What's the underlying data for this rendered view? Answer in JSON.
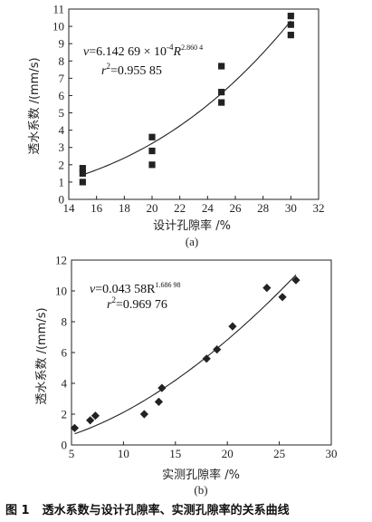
{
  "caption": {
    "label": "图 1",
    "text": "透水系数与设计孔隙率、实测孔隙率的关系曲线"
  },
  "chart_data": [
    {
      "type": "scatter",
      "panel_label": "(a)",
      "xlabel": "设计孔隙率 /%",
      "ylabel": "透水系数 /(mm/s)",
      "xlim": [
        14,
        32
      ],
      "ylim": [
        0,
        11
      ],
      "xticks": [
        14,
        16,
        18,
        20,
        22,
        24,
        26,
        28,
        30,
        32
      ],
      "yticks": [
        0,
        1,
        2,
        3,
        4,
        5,
        6,
        7,
        8,
        9,
        10,
        11
      ],
      "marker": "square",
      "points": [
        {
          "x": 15,
          "y": 1.0
        },
        {
          "x": 15,
          "y": 1.5
        },
        {
          "x": 15,
          "y": 1.8
        },
        {
          "x": 20,
          "y": 2.0
        },
        {
          "x": 20,
          "y": 2.8
        },
        {
          "x": 20,
          "y": 3.6
        },
        {
          "x": 25,
          "y": 5.6
        },
        {
          "x": 25,
          "y": 6.2
        },
        {
          "x": 25,
          "y": 7.7
        },
        {
          "x": 30,
          "y": 9.5
        },
        {
          "x": 30,
          "y": 10.1
        },
        {
          "x": 30,
          "y": 10.6
        }
      ],
      "fit": {
        "coef": 0.000614269,
        "exp": 2.8604,
        "x_from": 15,
        "x_to": 30
      },
      "equation": {
        "v": "v",
        "eq_a": "=6.142 69 × 10",
        "pow_a": "-4",
        "r_sym": "R",
        "pow_b": "2.860 4",
        "r2": "r",
        "r2_pow": "2",
        "r2_val": "=0.955 85"
      }
    },
    {
      "type": "scatter",
      "panel_label": "(b)",
      "xlabel": "实测孔隙率 /%",
      "ylabel": "透水系数 /(mm/s)",
      "xlim": [
        5,
        30
      ],
      "ylim": [
        0,
        12
      ],
      "xticks": [
        5,
        10,
        15,
        20,
        25,
        30
      ],
      "yticks": [
        0,
        2,
        4,
        6,
        8,
        10,
        12
      ],
      "marker": "diamond",
      "points": [
        {
          "x": 5.3,
          "y": 1.1
        },
        {
          "x": 6.8,
          "y": 1.6
        },
        {
          "x": 7.3,
          "y": 1.9
        },
        {
          "x": 12.0,
          "y": 2.0
        },
        {
          "x": 13.4,
          "y": 2.8
        },
        {
          "x": 13.7,
          "y": 3.7
        },
        {
          "x": 18.0,
          "y": 5.6
        },
        {
          "x": 19.0,
          "y": 6.2
        },
        {
          "x": 20.5,
          "y": 7.7
        },
        {
          "x": 23.8,
          "y": 10.2
        },
        {
          "x": 25.3,
          "y": 9.6
        },
        {
          "x": 26.6,
          "y": 10.7
        }
      ],
      "fit": {
        "coef": 0.04358,
        "exp": 1.68698,
        "x_from": 5.3,
        "x_to": 26.6
      },
      "equation": {
        "v": "v",
        "eq_a": "=0.043 58R",
        "pow_a": "1.686 98",
        "r2": "r",
        "r2_pow": "2",
        "r2_val": "=0.969 76"
      }
    }
  ]
}
